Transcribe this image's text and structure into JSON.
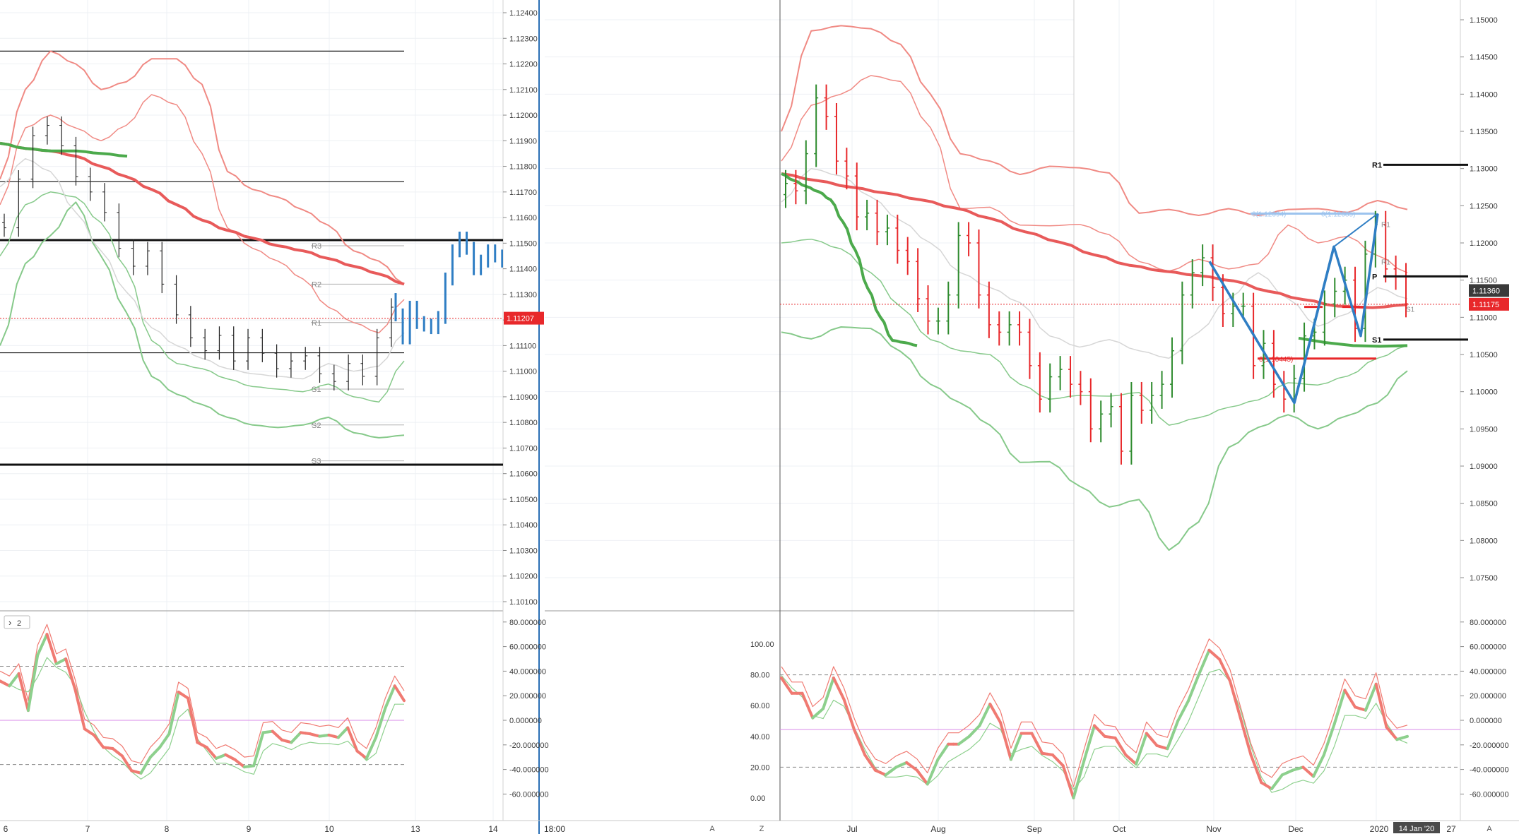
{
  "left": {
    "price_axis": [
      "1.12400",
      "1.12300",
      "1.12200",
      "1.12100",
      "1.12000",
      "1.11900",
      "1.11800",
      "1.11700",
      "1.11600",
      "1.11500",
      "1.11400",
      "1.11300",
      "1.11200",
      "1.11100",
      "1.11000",
      "1.10900",
      "1.10800",
      "1.10700",
      "1.10600",
      "1.10500",
      "1.10400",
      "1.10300",
      "1.10200",
      "1.10100"
    ],
    "price_badge": "1.11207",
    "pivot_labels": [
      "R3",
      "R2",
      "R1",
      "S1",
      "S2",
      "S3"
    ],
    "osc_axis": [
      "80.000000",
      "60.000000",
      "40.000000",
      "20.000000",
      "0.000000",
      "-20.000000",
      "-40.000000",
      "-60.000000"
    ],
    "osc_tag": "2",
    "time_axis": [
      "6",
      "7",
      "8",
      "9",
      "10",
      "13",
      "14",
      "18:00"
    ],
    "corner_btn": "A"
  },
  "right": {
    "price_axis": [
      "1.15000",
      "1.14500",
      "1.14000",
      "1.13500",
      "1.13000",
      "1.12500",
      "1.12000",
      "1.11500",
      "1.11000",
      "1.10500",
      "1.10000",
      "1.09500",
      "1.09000",
      "1.08500",
      "1.08000",
      "1.07500"
    ],
    "price_badge_dark": "1.11360",
    "price_badge_red": "1.11175",
    "pivot_labels": [
      "R1",
      "P",
      "S1"
    ],
    "fib_labels": [
      "0(1.12394)",
      "0(1.12385)"
    ],
    "fib_red_label": "0(1.10445)",
    "small_labels": [
      "R1",
      "R1",
      "S1"
    ],
    "osc_left_axis": [
      "100.00",
      "80.00",
      "60.00",
      "40.00",
      "20.00",
      "0.00"
    ],
    "osc_right_axis": [
      "80.000000",
      "60.000000",
      "40.000000",
      "20.000000",
      "0.000000",
      "-20.000000",
      "-40.000000",
      "-60.000000"
    ],
    "time_axis": [
      "Jul",
      "Aug",
      "Sep",
      "Oct",
      "Nov",
      "Dec",
      "2020",
      "27"
    ],
    "date_badge": "14 Jan '20",
    "corner_z": "Z",
    "corner_btn": "A"
  },
  "colors": {
    "up": "#2e8b2e",
    "down": "#e8282b",
    "blue": "#2f7ec4",
    "band_red": "#f08a84",
    "band_green": "#86c98a",
    "ma_red": "#e85a5a",
    "ma_green": "#4caa4c",
    "osc_red": "#f07a72",
    "osc_green": "#8dd08d"
  },
  "chart_data": [
    {
      "type": "line",
      "panel": "left-price",
      "price_ylim": [
        1.1008,
        1.1248
      ],
      "last_price": 1.11207,
      "horizontal_levels": [
        1.1225,
        1.1174,
        1.11512,
        1.11072,
        1.10635
      ],
      "pivot_levels": {
        "R3": 1.1149,
        "R2": 1.1134,
        "R1": 1.1119,
        "S1": 1.1093,
        "S2": 1.1079,
        "S3": 1.1065
      },
      "ma_red": [
        1.1189,
        1.1187,
        1.1186,
        1.1184,
        1.118,
        1.1176,
        1.1171,
        1.1165,
        1.1159,
        1.1155,
        1.1152,
        1.1149,
        1.1147,
        1.1144,
        1.1141,
        1.1138,
        1.1134
      ],
      "ma_green": [
        1.1189,
        1.1187,
        1.1186,
        1.1186,
        1.1185,
        1.1184
      ],
      "band_upper_outer": [
        1.1175,
        1.121,
        1.1225,
        1.122,
        1.121,
        1.1213,
        1.1222,
        1.1222,
        1.1212,
        1.1178,
        1.1171,
        1.1168,
        1.1163,
        1.1157,
        1.1147,
        1.1143,
        1.1134
      ],
      "band_upper_inner": [
        1.1165,
        1.1195,
        1.12,
        1.1195,
        1.119,
        1.1196,
        1.1208,
        1.1204,
        1.1185,
        1.1156,
        1.1148,
        1.1143,
        1.1136,
        1.1125,
        1.1119,
        1.1115,
        1.1128
      ],
      "band_lower_inner": [
        1.1145,
        1.1165,
        1.117,
        1.1168,
        1.1158,
        1.114,
        1.1112,
        1.1103,
        1.1101,
        1.1097,
        1.1094,
        1.1093,
        1.1092,
        1.1095,
        1.109,
        1.1088,
        1.1104
      ],
      "band_lower_outer": [
        1.111,
        1.1142,
        1.1153,
        1.1166,
        1.1145,
        1.1123,
        1.1098,
        1.1091,
        1.1087,
        1.1082,
        1.1079,
        1.1078,
        1.1079,
        1.1082,
        1.1076,
        1.1074,
        1.1075
      ],
      "bars_black_close": [
        1.1156,
        1.1175,
        1.1192,
        1.1196,
        1.1188,
        1.1176,
        1.117,
        1.1162,
        1.1148,
        1.1141,
        1.1147,
        1.1134,
        1.1122,
        1.1113,
        1.1108,
        1.1114,
        1.1104,
        1.1113,
        1.1107,
        1.1101,
        1.1104,
        1.1106,
        1.1099,
        1.1096,
        1.1103,
        1.1098,
        1.1113,
        1.1125
      ],
      "bars_blue_close": [
        1.1122,
        1.1113,
        1.1125,
        1.1119,
        1.1118,
        1.1117,
        1.1121,
        1.1136,
        1.1147,
        1.1152,
        1.1148,
        1.114,
        1.1143,
        1.1147,
        1.1145,
        1.1143,
        1.1139,
        1.1134,
        1.1129,
        1.1123,
        1.1115,
        1.1101,
        1.1096,
        1.1093,
        1.1099,
        1.1108,
        1.1115,
        1.1108,
        1.1098,
        1.1092,
        1.1085,
        1.1076,
        1.107,
        1.1068,
        1.1064,
        1.1061,
        1.1058,
        1.1058
      ],
      "xlabels": [
        "6",
        "7",
        "8",
        "9",
        "10",
        "13",
        "14",
        "18:00"
      ]
    },
    {
      "type": "line",
      "panel": "left-oscillator",
      "ylim": [
        -70,
        85
      ],
      "levels": [
        44,
        0,
        -36
      ],
      "k": [
        32,
        28,
        38,
        8,
        53,
        70,
        46,
        50,
        25,
        -7,
        -12,
        -22,
        -23,
        -29,
        -41,
        -43,
        -30,
        -22,
        -11,
        23,
        18,
        -18,
        -22,
        -31,
        -28,
        -32,
        -38,
        -37,
        -10,
        -9,
        -16,
        -18,
        -10,
        -11,
        -13,
        -12,
        -14,
        -6,
        -25,
        -31,
        -14,
        10,
        28,
        16
      ],
      "d": [
        38,
        36,
        32,
        30,
        42,
        58,
        50,
        46,
        35,
        14,
        -2,
        -15,
        -22,
        -27,
        -35,
        -41,
        -36,
        -26,
        -16,
        9,
        16,
        -8,
        -18,
        -28,
        -28,
        -31,
        -35,
        -37,
        -18,
        -12,
        -14,
        -17,
        -13,
        -11,
        -12,
        -12,
        -13,
        -10,
        -18,
        -26,
        -20,
        2,
        20,
        20
      ]
    },
    {
      "type": "line",
      "panel": "right-price",
      "price_ylim": [
        1.0735,
        1.1525
      ],
      "last_price": 1.11175,
      "current_price": 1.1136,
      "horizontal_levels": {
        "R1": 1.1305,
        "P": 1.1155,
        "S1": 1.107
      },
      "fib_levels": [
        1.12394,
        1.10445
      ],
      "ma_red": [
        1.1293,
        1.1284,
        1.1275,
        1.1267,
        1.1258,
        1.1247,
        1.1233,
        1.1215,
        1.1201,
        1.1184,
        1.117,
        1.1162,
        1.1156,
        1.1149,
        1.1135,
        1.1124,
        1.1115,
        1.1113,
        1.1117
      ],
      "ma_green": [
        1.1293,
        1.1284,
        1.1276,
        1.1269,
        1.1258,
        1.1228,
        1.119,
        1.1139,
        1.1101,
        1.1069,
        1.1066,
        1.1062
      ],
      "band_upper_outer": [
        1.135,
        1.1485,
        1.1492,
        1.1488,
        1.1467,
        1.14,
        1.132,
        1.131,
        1.1292,
        1.1303,
        1.1301,
        1.1294,
        1.124,
        1.1245,
        1.1237,
        1.1246,
        1.1237,
        1.1245,
        1.1246,
        1.1241,
        1.1257,
        1.1245
      ],
      "band_upper_inner": [
        1.131,
        1.1385,
        1.14,
        1.1425,
        1.1417,
        1.1355,
        1.1246,
        1.1248,
        1.1224,
        1.1223,
        1.1225,
        1.1211,
        1.1175,
        1.1162,
        1.1178,
        1.1165,
        1.1172,
        1.1224,
        1.12,
        1.1209,
        1.1183,
        1.116
      ],
      "band_lower_inner": [
        1.12,
        1.1205,
        1.1192,
        1.116,
        1.1114,
        1.107,
        1.1055,
        1.105,
        1.101,
        1.099,
        1.0995,
        1.0994,
        1.0999,
        1.0955,
        1.0965,
        1.0979,
        1.0989,
        1.1012,
        1.1009,
        1.1021,
        1.1045,
        1.1062
      ],
      "band_lower_outer": [
        1.108,
        1.1071,
        1.1087,
        1.1085,
        1.1054,
        1.101,
        1.0985,
        1.0955,
        1.0905,
        1.0906,
        1.0873,
        1.0845,
        1.0855,
        1.0787,
        1.0825,
        1.0925,
        1.0952,
        1.0969,
        1.095,
        1.0968,
        1.0985,
        1.1028
      ],
      "bars_close": [
        1.128,
        1.127,
        1.132,
        1.1395,
        1.137,
        1.131,
        1.129,
        1.1235,
        1.124,
        1.1215,
        1.122,
        1.119,
        1.1175,
        1.1125,
        1.1095,
        1.1095,
        1.113,
        1.121,
        1.12,
        1.113,
        1.109,
        1.108,
        1.109,
        1.108,
        1.1035,
        1.099,
        1.102,
        1.103,
        1.101,
        1.1,
        1.095,
        1.097,
        1.098,
        1.092,
        1.0995,
        1.0975,
        1.0995,
        1.101,
        1.1055,
        1.113,
        1.116,
        1.118,
        1.114,
        1.1105,
        1.1115,
        1.1115,
        1.1035,
        1.1065,
        1.101,
        1.099,
        1.1018,
        1.1075,
        1.108,
        1.1118,
        1.1135,
        1.115,
        1.1085,
        1.1185,
        1.1225,
        1.1165,
        1.1155,
        1.1118
      ],
      "blue_pattern": [
        1.1175,
        1.0985,
        1.1195,
        1.1075,
        1.12394
      ],
      "xlabels": [
        "Jul",
        "Aug",
        "Sep",
        "Oct",
        "Nov",
        "Dec",
        "2020",
        "27"
      ]
    },
    {
      "type": "line",
      "panel": "right-oscillator",
      "ylim": [
        -5,
        108
      ],
      "levels": [
        80,
        44.5,
        20
      ],
      "k": [
        78,
        68,
        68,
        52,
        58,
        78,
        64,
        44,
        28,
        18,
        15,
        20,
        23,
        18,
        9,
        25,
        35,
        35,
        40,
        47,
        61,
        49,
        25,
        42,
        42,
        29,
        28,
        21,
        0,
        24,
        47,
        40,
        39,
        28,
        22,
        42,
        34,
        32,
        50,
        63,
        80,
        96,
        90,
        76,
        52,
        28,
        10,
        6,
        15,
        18,
        20,
        14,
        28,
        48,
        70,
        59,
        57,
        74,
        46,
        38,
        40
      ],
      "d": [
        86,
        78,
        72,
        60,
        58,
        70,
        66,
        52,
        38,
        26,
        20,
        20,
        21,
        20,
        15,
        21,
        30,
        34,
        38,
        44,
        55,
        51,
        35,
        38,
        40,
        34,
        30,
        24,
        12,
        20,
        38,
        40,
        40,
        32,
        26,
        35,
        35,
        33,
        44,
        56,
        72,
        88,
        90,
        82,
        64,
        40,
        20,
        10,
        12,
        16,
        18,
        16,
        24,
        40,
        60,
        60,
        58,
        68,
        55,
        45,
        42
      ]
    }
  ]
}
